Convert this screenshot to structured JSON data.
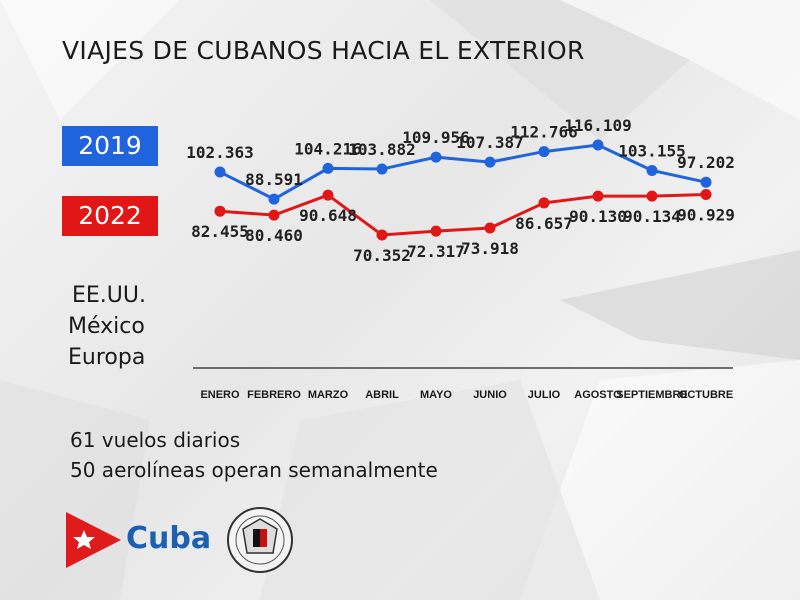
{
  "title": "VIAJES DE CUBANOS HACIA EL EXTERIOR",
  "legend": [
    {
      "label": "2019",
      "color": "#1f63dd"
    },
    {
      "label": "2022",
      "color": "#e11717"
    }
  ],
  "destinations": [
    "EE.UU.",
    "México",
    "Europa"
  ],
  "notes": [
    "61 vuelos diarios",
    "50 aerolíneas operan semanalmente"
  ],
  "brand": {
    "text": "Cuba"
  },
  "chart_data": {
    "type": "line",
    "categories": [
      "ENERO",
      "FEBRERO",
      "MARZO",
      "ABRIL",
      "MAYO",
      "JUNIO",
      "JULIO",
      "AGOSTO",
      "SEPTIEMBRE",
      "OCTUBRE"
    ],
    "series": [
      {
        "name": "2019",
        "color": "#1f63dd",
        "values": [
          102363,
          88591,
          104216,
          103882,
          109956,
          107387,
          112766,
          116109,
          103155,
          97202
        ],
        "labels": [
          "102.363",
          "88.591",
          "104.216",
          "103.882",
          "109.956",
          "107.387",
          "112.766",
          "116.109",
          "103.155",
          "97.202"
        ]
      },
      {
        "name": "2022",
        "color": "#e11717",
        "values": [
          82455,
          80460,
          90648,
          70352,
          72317,
          73918,
          86657,
          90130,
          90134,
          90929
        ],
        "labels": [
          "82.455",
          "80.460",
          "90.648",
          "70.352",
          "72.317",
          "73.918",
          "86.657",
          "90.130",
          "90.134",
          "90.929"
        ]
      }
    ]
  }
}
